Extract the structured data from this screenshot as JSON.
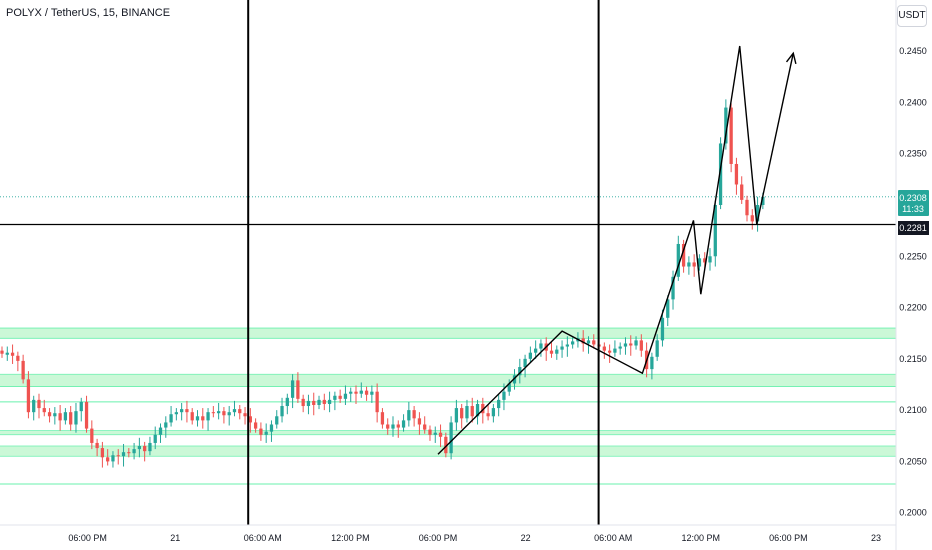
{
  "header": {
    "symbol_line": "POLYX / TetherUS, 15, BINANCE",
    "currency": "USDT"
  },
  "price_axis": {
    "ticks": [
      "0.2450",
      "0.2400",
      "0.2350",
      "0.2300",
      "0.2250",
      "0.2200",
      "0.2150",
      "0.2100",
      "0.2050",
      "0.2000"
    ]
  },
  "time_axis": {
    "ticks": [
      "06:00 PM",
      "21",
      "06:00 AM",
      "12:00 PM",
      "06:00 PM",
      "22",
      "06:00 AM",
      "12:00 PM",
      "06:00 PM",
      "23"
    ]
  },
  "last_price": {
    "value": "0.2308",
    "countdown": "11:33",
    "color": "#26a69a"
  },
  "crosshair_price": {
    "value": "0.2281"
  },
  "colors": {
    "up": "#26a69a",
    "down": "#ef5350",
    "zone": "#b9f6ca",
    "zone_line": "#69f0ae"
  },
  "chart_data": {
    "type": "candlestick",
    "title": "POLYX / TetherUS, 15, BINANCE",
    "y_unit": "USDT",
    "ylim": [
      0.1988,
      0.2495
    ],
    "x_range": [
      "2024-01-20 12:00",
      "2024-01-23 00:00"
    ],
    "x_ticks": [
      "06:00 PM",
      "21",
      "06:00 AM",
      "12:00 PM",
      "06:00 PM",
      "22",
      "06:00 AM",
      "12:00 PM",
      "06:00 PM",
      "23"
    ],
    "last_price": 0.2308,
    "crosshair_price": 0.2281,
    "price_path": [
      [
        0.2158,
        0.2155
      ],
      [
        0.2154,
        0.2156
      ],
      [
        0.2156,
        0.2153
      ],
      [
        0.2153,
        0.2148
      ],
      [
        0.2148,
        0.213
      ],
      [
        0.213,
        0.2098
      ],
      [
        0.2098,
        0.211
      ],
      [
        0.211,
        0.2102
      ],
      [
        0.2102,
        0.2098
      ],
      [
        0.2098,
        0.2094
      ],
      [
        0.2094,
        0.2097
      ],
      [
        0.2097,
        0.209
      ],
      [
        0.209,
        0.2098
      ],
      [
        0.2098,
        0.2086
      ],
      [
        0.2086,
        0.2099
      ],
      [
        0.2099,
        0.2108
      ],
      [
        0.2108,
        0.2082
      ],
      [
        0.2082,
        0.2068
      ],
      [
        0.2068,
        0.2063
      ],
      [
        0.2063,
        0.2054
      ],
      [
        0.2054,
        0.205
      ],
      [
        0.205,
        0.2056
      ],
      [
        0.2056,
        0.2055
      ],
      [
        0.2055,
        0.2059
      ],
      [
        0.2059,
        0.2058
      ],
      [
        0.2058,
        0.2062
      ],
      [
        0.2062,
        0.2065
      ],
      [
        0.2065,
        0.206
      ],
      [
        0.206,
        0.2068
      ],
      [
        0.2068,
        0.2076
      ],
      [
        0.2076,
        0.2083
      ],
      [
        0.2083,
        0.2088
      ],
      [
        0.2088,
        0.2096
      ],
      [
        0.2096,
        0.2098
      ],
      [
        0.2098,
        0.2101
      ],
      [
        0.2101,
        0.2098
      ],
      [
        0.2098,
        0.209
      ],
      [
        0.209,
        0.2094
      ],
      [
        0.2094,
        0.209
      ],
      [
        0.209,
        0.2098
      ],
      [
        0.2098,
        0.2097
      ],
      [
        0.2097,
        0.2099
      ],
      [
        0.2099,
        0.2095
      ],
      [
        0.2095,
        0.2098
      ],
      [
        0.2098,
        0.2101
      ],
      [
        0.2101,
        0.2097
      ],
      [
        0.2097,
        0.2094
      ],
      [
        0.2094,
        0.2088
      ],
      [
        0.2088,
        0.2082
      ],
      [
        0.2082,
        0.2076
      ],
      [
        0.2076,
        0.2079
      ],
      [
        0.2079,
        0.2086
      ],
      [
        0.2086,
        0.2094
      ],
      [
        0.2094,
        0.2104
      ],
      [
        0.2104,
        0.2112
      ],
      [
        0.2112,
        0.2129
      ],
      [
        0.2129,
        0.2111
      ],
      [
        0.2111,
        0.2104
      ],
      [
        0.2104,
        0.2109
      ],
      [
        0.2109,
        0.2105
      ],
      [
        0.2105,
        0.211
      ],
      [
        0.211,
        0.2106
      ],
      [
        0.2106,
        0.211
      ],
      [
        0.211,
        0.2114
      ],
      [
        0.2114,
        0.2111
      ],
      [
        0.2111,
        0.2116
      ],
      [
        0.2116,
        0.2118
      ],
      [
        0.2118,
        0.2116
      ],
      [
        0.2116,
        0.2119
      ],
      [
        0.2119,
        0.2115
      ],
      [
        0.2115,
        0.2118
      ],
      [
        0.2118,
        0.2098
      ],
      [
        0.2098,
        0.2086
      ],
      [
        0.2086,
        0.2082
      ],
      [
        0.2082,
        0.2086
      ],
      [
        0.2086,
        0.2083
      ],
      [
        0.2083,
        0.209
      ],
      [
        0.209,
        0.21
      ],
      [
        0.21,
        0.2092
      ],
      [
        0.2092,
        0.2086
      ],
      [
        0.2086,
        0.2081
      ],
      [
        0.2081,
        0.2076
      ],
      [
        0.2076,
        0.2078
      ],
      [
        0.2078,
        0.2074
      ],
      [
        0.2074,
        0.2058
      ],
      [
        0.2058,
        0.2088
      ],
      [
        0.2088,
        0.2102
      ],
      [
        0.2102,
        0.2092
      ],
      [
        0.2092,
        0.2104
      ],
      [
        0.2104,
        0.2094
      ],
      [
        0.2094,
        0.2106
      ],
      [
        0.2106,
        0.2097
      ],
      [
        0.2097,
        0.2094
      ],
      [
        0.2094,
        0.2102
      ],
      [
        0.2102,
        0.211
      ],
      [
        0.211,
        0.2118
      ],
      [
        0.2118,
        0.2126
      ],
      [
        0.2126,
        0.2134
      ],
      [
        0.2134,
        0.2142
      ],
      [
        0.2142,
        0.215
      ],
      [
        0.215,
        0.2156
      ],
      [
        0.2156,
        0.216
      ],
      [
        0.216,
        0.2165
      ],
      [
        0.2165,
        0.2158
      ],
      [
        0.2158,
        0.2155
      ],
      [
        0.2155,
        0.2159
      ],
      [
        0.2159,
        0.2162
      ],
      [
        0.2162,
        0.2164
      ],
      [
        0.2164,
        0.2167
      ],
      [
        0.2167,
        0.217
      ],
      [
        0.217,
        0.2165
      ],
      [
        0.2165,
        0.2168
      ],
      [
        0.2168,
        0.2164
      ],
      [
        0.2164,
        0.2162
      ],
      [
        0.2162,
        0.2158
      ],
      [
        0.2158,
        0.2156
      ],
      [
        0.2156,
        0.216
      ],
      [
        0.216,
        0.2162
      ],
      [
        0.2162,
        0.2165
      ],
      [
        0.2165,
        0.2163
      ],
      [
        0.2163,
        0.2168
      ],
      [
        0.2168,
        0.2158
      ],
      [
        0.2158,
        0.214
      ],
      [
        0.214,
        0.2152
      ],
      [
        0.2152,
        0.2168
      ],
      [
        0.2168,
        0.219
      ],
      [
        0.219,
        0.2208
      ],
      [
        0.2208,
        0.223
      ],
      [
        0.223,
        0.2262
      ],
      [
        0.2262,
        0.224
      ],
      [
        0.224,
        0.2244
      ],
      [
        0.2244,
        0.224
      ],
      [
        0.224,
        0.2248
      ],
      [
        0.2248,
        0.2244
      ],
      [
        0.2244,
        0.225
      ],
      [
        0.225,
        0.23
      ],
      [
        0.23,
        0.236
      ],
      [
        0.236,
        0.2395
      ],
      [
        0.2395,
        0.234
      ],
      [
        0.234,
        0.232
      ],
      [
        0.232,
        0.2305
      ],
      [
        0.2305,
        0.229
      ],
      [
        0.229,
        0.2284
      ],
      [
        0.2284,
        0.23
      ],
      [
        0.23,
        0.2308
      ]
    ],
    "zones": [
      {
        "kind": "band",
        "low": 0.217,
        "high": 0.218
      },
      {
        "kind": "band",
        "low": 0.2123,
        "high": 0.2135
      },
      {
        "kind": "line",
        "price": 0.2108
      },
      {
        "kind": "band",
        "low": 0.2076,
        "high": 0.208
      },
      {
        "kind": "band",
        "low": 0.2055,
        "high": 0.2065
      },
      {
        "kind": "line",
        "price": 0.2028
      }
    ],
    "vertical_markers": [
      "2024-01-21 05:00",
      "2024-01-22 05:00"
    ],
    "pattern_path": [
      [
        "2024-01-21 18:00",
        0.2057
      ],
      [
        "2024-01-22 02:30",
        0.2177
      ],
      [
        "2024-01-22 08:00",
        0.2136
      ],
      [
        "2024-01-22 11:30",
        0.2285
      ],
      [
        "2024-01-22 12:00",
        0.2213
      ],
      [
        "2024-01-22 14:40",
        0.2455
      ],
      [
        "2024-01-22 15:50",
        0.2281
      ]
    ],
    "projection_arrow": [
      [
        "2024-01-22 15:50",
        0.2281
      ],
      [
        "2024-01-22 18:20",
        0.2448
      ]
    ]
  }
}
